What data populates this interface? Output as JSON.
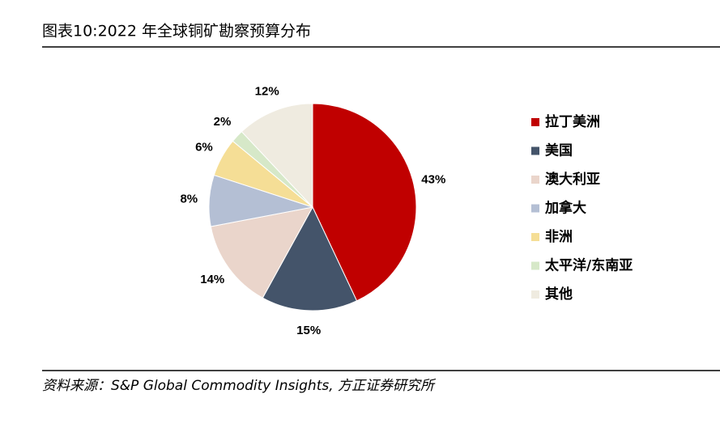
{
  "chart_data": {
    "type": "pie",
    "title": "图表10:2022 年全球铜矿勘察预算分布",
    "source": "资料来源：S&P Global Commodity Insights, 方正证券研究所",
    "categories": [
      "拉丁美洲",
      "美国",
      "澳大利亚",
      "加拿大",
      "非洲",
      "太平洋/东南亚",
      "其他"
    ],
    "values": [
      43,
      15,
      14,
      8,
      6,
      2,
      12
    ],
    "value_labels": [
      "43%",
      "15%",
      "14%",
      "8%",
      "6%",
      "2%",
      "12%"
    ],
    "colors": [
      "#c00000",
      "#44546a",
      "#ead5cb",
      "#b4bfd4",
      "#f5de96",
      "#d6e8c8",
      "#efebe0"
    ]
  }
}
